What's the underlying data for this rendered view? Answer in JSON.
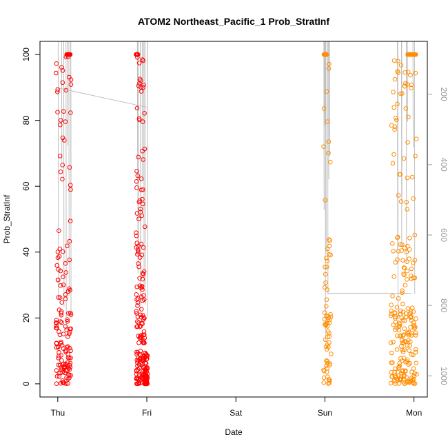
{
  "chart_data": {
    "type": "scatter",
    "title": "ATOM2 Northeast_Pacific_1 Prob_StratInf",
    "xlabel": "Date",
    "ylabel": "Prob_StratInf",
    "x_ticks": [
      "Thu",
      "Fri",
      "Sat",
      "Sun",
      "Mon"
    ],
    "x_range_days": [
      -0.2,
      4.15
    ],
    "ylim": [
      -4,
      104
    ],
    "y_ticks": [
      0,
      20,
      40,
      60,
      80,
      100
    ],
    "y2_ticks": [
      200,
      400,
      600,
      800,
      1000
    ],
    "y2_range": [
      50,
      1060
    ],
    "grid": false,
    "colors": {
      "red": "#ff0000",
      "orange": "#ff8c00",
      "guide_line": "#bfbfbf"
    },
    "clusters": [
      {
        "name": "",
        "color": "red",
        "x_start": -0.02,
        "x_end": 0.15,
        "n": 150,
        "high": [
          0.1,
          0.14
        ]
      },
      {
        "name": "",
        "color": "red",
        "x_start": 0.88,
        "x_end": 0.98,
        "n": 160,
        "high": [
          0.88,
          0.9
        ]
      },
      {
        "name": "",
        "color": "red",
        "x_start": 0.97,
        "x_end": 1.01,
        "n": 60,
        "low_only": true
      },
      {
        "name": "",
        "color": "orange",
        "x_start": 2.98,
        "x_end": 3.07,
        "n": 70,
        "high": [
          2.99,
          3.02
        ]
      },
      {
        "name": "",
        "color": "orange",
        "x_start": 3.74,
        "x_end": 4.03,
        "n": 230,
        "high": [
          3.93,
          4.02
        ]
      }
    ],
    "sample_points": [
      {
        "x": 0.0,
        "y": 90
      },
      {
        "x": 0.02,
        "y": 74
      },
      {
        "x": 0.03,
        "y": 62
      },
      {
        "x": 0.05,
        "y": 42
      },
      {
        "x": 0.08,
        "y": 30
      },
      {
        "x": 0.1,
        "y": 100
      },
      {
        "x": 0.12,
        "y": 98
      },
      {
        "x": 0.9,
        "y": 100
      },
      {
        "x": 0.92,
        "y": 85
      },
      {
        "x": 0.95,
        "y": 30
      },
      {
        "x": 1.0,
        "y": 2
      },
      {
        "x": 3.0,
        "y": 100
      },
      {
        "x": 3.03,
        "y": 73
      },
      {
        "x": 3.02,
        "y": 28
      },
      {
        "x": 3.88,
        "y": 100
      },
      {
        "x": 3.95,
        "y": 80
      },
      {
        "x": 3.85,
        "y": 20
      },
      {
        "x": 3.78,
        "y": 5
      }
    ]
  }
}
